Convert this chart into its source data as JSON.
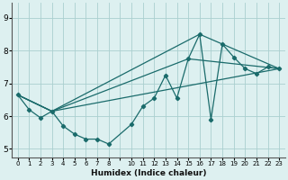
{
  "xlabel": "Humidex (Indice chaleur)",
  "bg_color": "#ddf0f0",
  "grid_color": "#aacfcf",
  "line_color": "#1a6b6b",
  "ylim": [
    4.75,
    9.45
  ],
  "yticks": [
    5,
    6,
    7,
    8,
    9
  ],
  "xtick_labels": [
    "0",
    "1",
    "2",
    "3",
    "4",
    "5",
    "6",
    "7",
    "8",
    "",
    "10",
    "11",
    "12",
    "13",
    "14",
    "15",
    "16",
    "17",
    "18",
    "19",
    "20",
    "21",
    "22",
    "23"
  ],
  "main_series": [
    [
      0,
      6.65
    ],
    [
      1,
      6.2
    ],
    [
      2,
      5.95
    ],
    [
      3,
      6.15
    ],
    [
      4,
      5.7
    ],
    [
      5,
      5.45
    ],
    [
      6,
      5.3
    ],
    [
      7,
      5.3
    ],
    [
      8,
      5.15
    ],
    [
      10,
      5.75
    ],
    [
      11,
      6.3
    ],
    [
      12,
      6.55
    ],
    [
      13,
      7.25
    ],
    [
      14,
      6.55
    ],
    [
      15,
      7.75
    ],
    [
      16,
      8.5
    ],
    [
      17,
      5.9
    ],
    [
      18,
      8.2
    ],
    [
      19,
      7.8
    ],
    [
      20,
      7.45
    ],
    [
      21,
      7.3
    ],
    [
      22,
      7.5
    ],
    [
      23,
      7.45
    ]
  ],
  "extra_lines": [
    [
      [
        0,
        6.65
      ],
      [
        3,
        6.15
      ],
      [
        16,
        8.5
      ],
      [
        23,
        7.45
      ]
    ],
    [
      [
        0,
        6.65
      ],
      [
        3,
        6.15
      ],
      [
        15,
        7.75
      ],
      [
        23,
        7.45
      ]
    ],
    [
      [
        0,
        6.65
      ],
      [
        3,
        6.15
      ],
      [
        23,
        7.45
      ]
    ]
  ]
}
